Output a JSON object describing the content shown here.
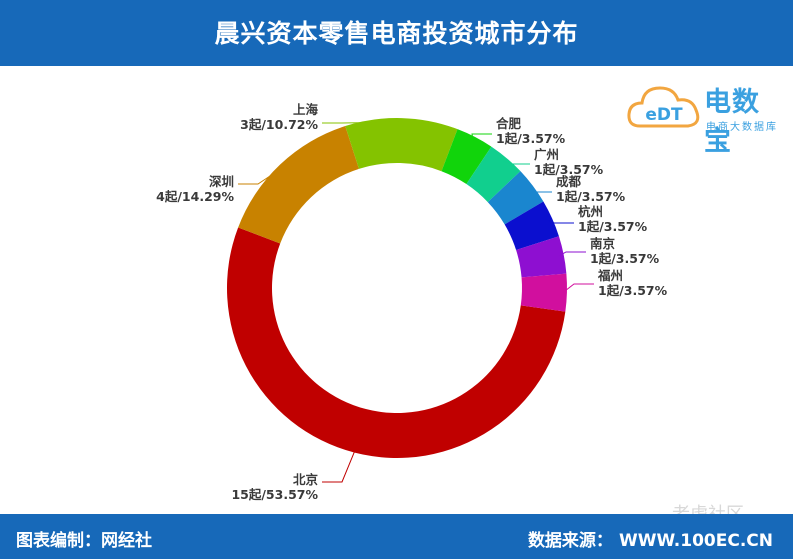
{
  "header": {
    "title": "晨兴资本零售电商投资城市分布"
  },
  "footer": {
    "left": "图表编制：网经社",
    "right_label": "数据来源：",
    "right_site": "WWW.100EC.CN"
  },
  "logo": {
    "brand": "电数宝",
    "subtitle": "电商大数据库",
    "icon_text": "eDT"
  },
  "watermark": "老虎社区",
  "colors": {
    "header_bg": "#1769b9",
    "北京": "#c00000",
    "深圳": "#c88200",
    "上海": "#84c300",
    "合肥": "#11d40b",
    "广州": "#11cf8e",
    "成都": "#1a86cf",
    "杭州": "#0b0fcf",
    "南京": "#8e0fd1",
    "福州": "#d10f9e"
  },
  "chart_data": {
    "type": "pie",
    "donut": true,
    "title": "晨兴资本零售电商投资城市分布",
    "slices": [
      {
        "name": "北京",
        "value": 15,
        "percent": 53.57,
        "label": "15起/53.57%"
      },
      {
        "name": "深圳",
        "value": 4,
        "percent": 14.29,
        "label": "4起/14.29%"
      },
      {
        "name": "上海",
        "value": 3,
        "percent": 10.72,
        "label": "3起/10.72%"
      },
      {
        "name": "合肥",
        "value": 1,
        "percent": 3.57,
        "label": "1起/3.57%"
      },
      {
        "name": "广州",
        "value": 1,
        "percent": 3.57,
        "label": "1起/3.57%"
      },
      {
        "name": "成都",
        "value": 1,
        "percent": 3.57,
        "label": "1起/3.57%"
      },
      {
        "name": "杭州",
        "value": 1,
        "percent": 3.57,
        "label": "1起/3.57%"
      },
      {
        "name": "南京",
        "value": 1,
        "percent": 3.57,
        "label": "1起/3.57%"
      },
      {
        "name": "福州",
        "value": 1,
        "percent": 3.57,
        "label": "1起/3.57%"
      }
    ]
  }
}
